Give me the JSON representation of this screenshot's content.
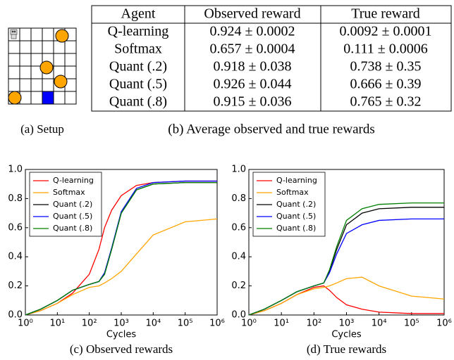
{
  "setup": {
    "caption": "(a) Setup"
  },
  "table": {
    "header": [
      "Agent",
      "Observed reward",
      "True reward"
    ],
    "rows": [
      [
        "Q-learning",
        "0.924 ± 0.0002",
        "0.0092 ± 0.0001"
      ],
      [
        "Softmax",
        "0.657 ± 0.0004",
        "0.111 ± 0.0006"
      ],
      [
        "Quant (.2)",
        "0.918 ± 0.038",
        "0.738 ± 0.35"
      ],
      [
        "Quant (.5)",
        "0.926 ± 0.044",
        "0.666 ± 0.39"
      ],
      [
        "Quant (.8)",
        "0.915 ± 0.036",
        "0.765 ± 0.32"
      ]
    ],
    "caption": "(b) Average observed and true rewards"
  },
  "chart_data": [
    {
      "type": "line",
      "caption": "(c) Observed rewards",
      "x_label": "Cycles",
      "log_x": true,
      "x": [
        1,
        3,
        10,
        30,
        100,
        200,
        300,
        500,
        1000,
        3000,
        10000,
        100000,
        1000000
      ],
      "series": [
        {
          "name": "Q-learning",
          "color": "#ff0000",
          "values": [
            0.0,
            0.03,
            0.08,
            0.15,
            0.28,
            0.45,
            0.6,
            0.72,
            0.82,
            0.89,
            0.91,
            0.92,
            0.92
          ]
        },
        {
          "name": "Softmax",
          "color": "#ffa500",
          "values": [
            0.0,
            0.03,
            0.08,
            0.14,
            0.19,
            0.2,
            0.22,
            0.25,
            0.3,
            0.42,
            0.55,
            0.64,
            0.66
          ]
        },
        {
          "name": "Quant (.2)",
          "color": "#000000",
          "values": [
            0.0,
            0.04,
            0.1,
            0.17,
            0.21,
            0.23,
            0.28,
            0.45,
            0.7,
            0.86,
            0.9,
            0.91,
            0.91
          ]
        },
        {
          "name": "Quant (.5)",
          "color": "#0000ff",
          "values": [
            0.0,
            0.04,
            0.1,
            0.17,
            0.21,
            0.23,
            0.29,
            0.46,
            0.71,
            0.87,
            0.91,
            0.92,
            0.92
          ]
        },
        {
          "name": "Quant (.8)",
          "color": "#008000",
          "values": [
            0.0,
            0.04,
            0.1,
            0.17,
            0.21,
            0.23,
            0.28,
            0.45,
            0.7,
            0.86,
            0.9,
            0.91,
            0.91
          ]
        }
      ],
      "xlim": [
        1,
        1000000
      ],
      "xticks": [
        {
          "value": 1,
          "label": "10⁰"
        },
        {
          "value": 10,
          "label": "10¹"
        },
        {
          "value": 100,
          "label": "10²"
        },
        {
          "value": 1000,
          "label": "10³"
        },
        {
          "value": 10000,
          "label": "10⁴"
        },
        {
          "value": 100000,
          "label": "10⁵"
        },
        {
          "value": 1000000,
          "label": "10⁶"
        }
      ],
      "ylim": [
        0,
        1
      ],
      "yticks": [
        {
          "value": 0,
          "label": "0.0"
        },
        0.2,
        0.4,
        0.6,
        0.8,
        {
          "value": 1,
          "label": "1.0"
        }
      ],
      "legend": "upper-left"
    },
    {
      "type": "line",
      "caption": "(d) True rewards",
      "x_label": "Cycles",
      "log_x": true,
      "x": [
        1,
        3,
        10,
        30,
        100,
        200,
        300,
        500,
        1000,
        3000,
        10000,
        100000,
        1000000
      ],
      "series": [
        {
          "name": "Q-learning",
          "color": "#ff0000",
          "values": [
            0.0,
            0.03,
            0.08,
            0.14,
            0.19,
            0.2,
            0.17,
            0.12,
            0.07,
            0.04,
            0.02,
            0.01,
            0.01
          ]
        },
        {
          "name": "Softmax",
          "color": "#ffa500",
          "values": [
            0.0,
            0.03,
            0.08,
            0.14,
            0.18,
            0.19,
            0.2,
            0.22,
            0.25,
            0.26,
            0.2,
            0.13,
            0.11
          ]
        },
        {
          "name": "Quant (.2)",
          "color": "#000000",
          "values": [
            0.0,
            0.04,
            0.1,
            0.16,
            0.2,
            0.22,
            0.3,
            0.45,
            0.62,
            0.7,
            0.73,
            0.74,
            0.74
          ]
        },
        {
          "name": "Quant (.5)",
          "color": "#0000ff",
          "values": [
            0.0,
            0.04,
            0.1,
            0.16,
            0.2,
            0.22,
            0.29,
            0.42,
            0.56,
            0.62,
            0.65,
            0.66,
            0.66
          ]
        },
        {
          "name": "Quant (.8)",
          "color": "#008000",
          "values": [
            0.0,
            0.04,
            0.1,
            0.16,
            0.2,
            0.22,
            0.31,
            0.47,
            0.65,
            0.73,
            0.76,
            0.77,
            0.77
          ]
        }
      ],
      "xlim": [
        1,
        1000000
      ],
      "xticks": [
        {
          "value": 1,
          "label": "10⁰"
        },
        {
          "value": 10,
          "label": "10¹"
        },
        {
          "value": 100,
          "label": "10²"
        },
        {
          "value": 1000,
          "label": "10³"
        },
        {
          "value": 10000,
          "label": "10⁴"
        },
        {
          "value": 100000,
          "label": "10⁵"
        },
        {
          "value": 1000000,
          "label": "10⁶"
        }
      ],
      "ylim": [
        0,
        1
      ],
      "yticks": [
        {
          "value": 0,
          "label": "0.0"
        },
        0.2,
        0.4,
        0.6,
        0.8,
        {
          "value": 1,
          "label": "1.0"
        }
      ],
      "legend": "upper-left"
    }
  ]
}
